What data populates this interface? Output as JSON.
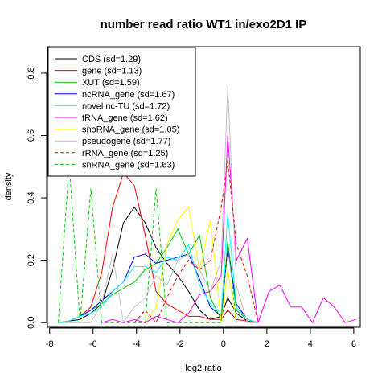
{
  "chart_data": {
    "type": "line",
    "title": "number read ratio WT1 in/exo2D1 IP",
    "xlabel": "log2 ratio",
    "ylabel": "density",
    "xlim": [
      -8.1,
      6.3
    ],
    "ylim": [
      -0.015,
      0.885
    ],
    "xticks": [
      -8,
      -6,
      -4,
      -2,
      0,
      2,
      4,
      6
    ],
    "yticks": [
      0.0,
      0.2,
      0.4,
      0.6,
      0.8
    ],
    "ytick_labels": [
      "0.0",
      "0.2",
      "0.4",
      "0.6",
      "0.8"
    ],
    "grid": false,
    "legend_position": "top-left",
    "series": [
      {
        "name": "CDS (sd=1.29)",
        "color": "#000000",
        "dash": "solid",
        "points": [
          [
            -7.6,
            0.0
          ],
          [
            -7.1,
            0.005
          ],
          [
            -6.6,
            0.01
          ],
          [
            -6.1,
            0.03
          ],
          [
            -5.6,
            0.06
          ],
          [
            -5.1,
            0.17
          ],
          [
            -4.6,
            0.32
          ],
          [
            -4.1,
            0.37
          ],
          [
            -3.6,
            0.32
          ],
          [
            -3.1,
            0.24
          ],
          [
            -2.6,
            0.19
          ],
          [
            -2.1,
            0.15
          ],
          [
            -1.6,
            0.1
          ],
          [
            -1.1,
            0.04
          ],
          [
            -0.6,
            0.01
          ],
          [
            -0.1,
            0.02
          ],
          [
            0.2,
            0.08
          ],
          [
            0.6,
            0.03
          ],
          [
            1.1,
            0.005
          ],
          [
            1.6,
            0.0
          ]
        ]
      },
      {
        "name": "gene (sd=1.13)",
        "color": "#ff0000",
        "dash": "solid",
        "points": [
          [
            -7.6,
            0.0
          ],
          [
            -7.1,
            0.005
          ],
          [
            -6.6,
            0.02
          ],
          [
            -6.1,
            0.05
          ],
          [
            -5.6,
            0.16
          ],
          [
            -5.1,
            0.37
          ],
          [
            -4.6,
            0.48
          ],
          [
            -4.1,
            0.44
          ],
          [
            -3.6,
            0.28
          ],
          [
            -3.1,
            0.1
          ],
          [
            -2.6,
            0.06
          ],
          [
            -2.1,
            0.04
          ],
          [
            -1.6,
            0.02
          ],
          [
            -1.1,
            0.02
          ],
          [
            -0.6,
            0.01
          ],
          [
            -0.1,
            0.01
          ],
          [
            0.2,
            0.04
          ],
          [
            0.6,
            0.01
          ],
          [
            1.1,
            0.005
          ],
          [
            1.6,
            0.0
          ]
        ]
      },
      {
        "name": "XUT (sd=1.59)",
        "color": "#00cc00",
        "dash": "solid",
        "points": [
          [
            -7.6,
            0.0
          ],
          [
            -7.1,
            0.005
          ],
          [
            -6.6,
            0.02
          ],
          [
            -6.1,
            0.04
          ],
          [
            -5.6,
            0.06
          ],
          [
            -5.1,
            0.09
          ],
          [
            -4.6,
            0.11
          ],
          [
            -4.1,
            0.13
          ],
          [
            -3.6,
            0.17
          ],
          [
            -3.1,
            0.19
          ],
          [
            -2.6,
            0.24
          ],
          [
            -2.1,
            0.3
          ],
          [
            -1.6,
            0.22
          ],
          [
            -1.1,
            0.28
          ],
          [
            -0.6,
            0.08
          ],
          [
            -0.1,
            0.01
          ],
          [
            0.2,
            0.26
          ],
          [
            0.6,
            0.04
          ],
          [
            1.1,
            0.01
          ],
          [
            1.6,
            0.0
          ]
        ]
      },
      {
        "name": "ncRNA_gene (sd=1.67)",
        "color": "#0000ff",
        "dash": "solid",
        "points": [
          [
            -7.6,
            0.0
          ],
          [
            -7.1,
            0.005
          ],
          [
            -6.6,
            0.02
          ],
          [
            -6.1,
            0.04
          ],
          [
            -5.6,
            0.07
          ],
          [
            -5.1,
            0.1
          ],
          [
            -4.6,
            0.13
          ],
          [
            -4.1,
            0.21
          ],
          [
            -3.6,
            0.22
          ],
          [
            -3.1,
            0.19
          ],
          [
            -2.6,
            0.2
          ],
          [
            -2.1,
            0.21
          ],
          [
            -1.6,
            0.22
          ],
          [
            -1.1,
            0.14
          ],
          [
            -0.6,
            0.05
          ],
          [
            -0.1,
            0.02
          ],
          [
            0.2,
            0.24
          ],
          [
            0.6,
            0.06
          ],
          [
            1.1,
            0.01
          ],
          [
            1.6,
            0.0
          ]
        ]
      },
      {
        "name": "novel nc-TU (sd=1.72)",
        "color": "#00ffff",
        "dash": "solid",
        "points": [
          [
            -7.6,
            0.0
          ],
          [
            -7.1,
            0.005
          ],
          [
            -6.6,
            0.02
          ],
          [
            -6.1,
            0.03
          ],
          [
            -5.6,
            0.05
          ],
          [
            -5.1,
            0.1
          ],
          [
            -4.6,
            0.13
          ],
          [
            -4.1,
            0.18
          ],
          [
            -3.6,
            0.18
          ],
          [
            -3.1,
            0.16
          ],
          [
            -2.6,
            0.21
          ],
          [
            -2.1,
            0.2
          ],
          [
            -1.6,
            0.25
          ],
          [
            -1.1,
            0.12
          ],
          [
            -0.6,
            0.06
          ],
          [
            -0.1,
            0.03
          ],
          [
            0.2,
            0.35
          ],
          [
            0.6,
            0.05
          ],
          [
            1.1,
            0.01
          ],
          [
            1.6,
            0.0
          ]
        ]
      },
      {
        "name": "tRNA_gene (sd=1.62)",
        "color": "#ff00ff",
        "dash": "solid",
        "points": [
          [
            -5.6,
            0.0
          ],
          [
            -5.1,
            0.01
          ],
          [
            -4.6,
            0.0
          ],
          [
            -4.1,
            0.01
          ],
          [
            -3.6,
            0.0
          ],
          [
            -3.1,
            0.02
          ],
          [
            -2.6,
            0.01
          ],
          [
            -2.1,
            0.0
          ],
          [
            -1.6,
            0.03
          ],
          [
            -1.1,
            0.09
          ],
          [
            -0.6,
            0.1
          ],
          [
            -0.1,
            0.15
          ],
          [
            0.2,
            0.6
          ],
          [
            0.6,
            0.2
          ],
          [
            1.1,
            0.27
          ],
          [
            1.6,
            0.0
          ],
          [
            2.1,
            0.1
          ],
          [
            2.6,
            0.12
          ],
          [
            3.1,
            0.05
          ],
          [
            3.6,
            0.05
          ],
          [
            4.1,
            0.0
          ],
          [
            4.6,
            0.08
          ],
          [
            5.1,
            0.05
          ],
          [
            5.6,
            0.0
          ],
          [
            6.1,
            0.01
          ]
        ]
      },
      {
        "name": "snoRNA_gene (sd=1.05)",
        "color": "#ffff00",
        "dash": "solid",
        "points": [
          [
            -3.6,
            0.0
          ],
          [
            -3.1,
            0.05
          ],
          [
            -2.6,
            0.25
          ],
          [
            -2.1,
            0.33
          ],
          [
            -1.6,
            0.37
          ],
          [
            -1.1,
            0.17
          ],
          [
            -0.6,
            0.33
          ],
          [
            -0.1,
            0.0
          ],
          [
            0.2,
            0.17
          ],
          [
            0.6,
            0.0
          ]
        ]
      },
      {
        "name": "pseudogene (sd=1.77)",
        "color": "#c0c0c0",
        "dash": "solid",
        "points": [
          [
            -7.6,
            0.0
          ],
          [
            -7.1,
            0.0
          ],
          [
            -6.6,
            0.0
          ],
          [
            -6.1,
            0.0
          ],
          [
            -5.6,
            0.06
          ],
          [
            -5.1,
            0.22
          ],
          [
            -4.6,
            0.0
          ],
          [
            -4.1,
            0.05
          ],
          [
            -3.6,
            0.08
          ],
          [
            -3.1,
            0.15
          ],
          [
            -2.6,
            0.12
          ],
          [
            -2.1,
            0.2
          ],
          [
            -1.6,
            0.22
          ],
          [
            -1.1,
            0.17
          ],
          [
            -0.6,
            0.1
          ],
          [
            -0.1,
            0.2
          ],
          [
            0.2,
            0.76
          ],
          [
            0.6,
            0.12
          ],
          [
            1.1,
            0.0
          ],
          [
            1.6,
            0.0
          ]
        ]
      },
      {
        "name": "rRNA_gene (sd=1.25)",
        "color": "#ff0000",
        "dash": "dashed",
        "points": [
          [
            -4.1,
            0.0
          ],
          [
            -3.6,
            0.04
          ],
          [
            -3.1,
            0.0
          ],
          [
            -2.6,
            0.08
          ],
          [
            -2.1,
            0.15
          ],
          [
            -1.6,
            0.2
          ],
          [
            -1.1,
            0.17
          ],
          [
            -0.6,
            0.2
          ],
          [
            -0.1,
            0.37
          ],
          [
            0.2,
            0.52
          ],
          [
            0.6,
            0.25
          ],
          [
            1.1,
            0.15
          ],
          [
            1.6,
            0.0
          ]
        ]
      },
      {
        "name": "snRNA_gene (sd=1.63)",
        "color": "#00cc00",
        "dash": "dashed",
        "points": [
          [
            -7.6,
            0.0
          ],
          [
            -7.1,
            0.51
          ],
          [
            -6.6,
            0.0
          ],
          [
            -6.1,
            0.43
          ],
          [
            -5.6,
            0.0
          ],
          [
            -5.1,
            0.0
          ],
          [
            -4.6,
            0.0
          ],
          [
            -4.1,
            0.0
          ],
          [
            -3.6,
            0.0
          ],
          [
            -3.1,
            0.43
          ],
          [
            -2.6,
            0.0
          ],
          [
            -2.1,
            0.0
          ],
          [
            -1.6,
            0.0
          ],
          [
            -1.1,
            0.0
          ],
          [
            -0.6,
            0.0
          ],
          [
            -0.1,
            0.0
          ],
          [
            0.2,
            0.26
          ],
          [
            0.6,
            0.0
          ]
        ]
      }
    ]
  }
}
